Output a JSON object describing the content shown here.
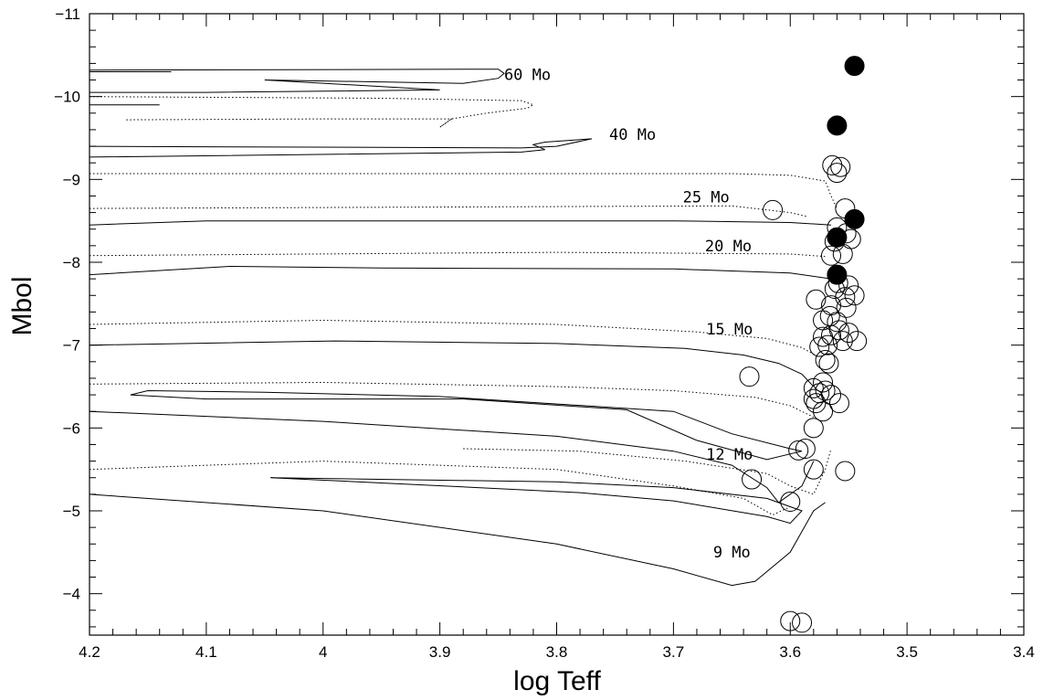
{
  "chart_data": {
    "type": "scatter",
    "title": "",
    "xlabel": "log Teff",
    "ylabel": "Mbol",
    "xlim": [
      4.2,
      3.4
    ],
    "ylim": [
      -3.5,
      -11
    ],
    "x_major_ticks": [
      4.2,
      4.1,
      4.0,
      3.9,
      3.8,
      3.7,
      3.6,
      3.5,
      3.4
    ],
    "x_tick_labels": [
      "4.2",
      "4.1",
      "4",
      "3.9",
      "3.8",
      "3.7",
      "3.6",
      "3.5",
      "3.4"
    ],
    "y_major_ticks": [
      -4,
      -5,
      -6,
      -7,
      -8,
      -9,
      -10,
      -11
    ],
    "y_tick_labels": [
      "−4",
      "−5",
      "−6",
      "−7",
      "−8",
      "−9",
      "−10",
      "−11"
    ],
    "grid": false,
    "tracks": [
      {
        "label": "60 Mo",
        "label_pos": [
          3.825,
          -10.2
        ],
        "segments": [
          {
            "style": "solid",
            "points": [
              [
                4.2,
                -10.32
              ],
              [
                3.85,
                -10.33
              ],
              [
                3.845,
                -10.28
              ],
              [
                3.85,
                -10.22
              ],
              [
                3.88,
                -10.16
              ],
              [
                4.05,
                -10.2
              ],
              [
                3.9,
                -10.08
              ],
              [
                4.1,
                -10.05
              ],
              [
                4.2,
                -10.05
              ]
            ]
          },
          {
            "style": "solid",
            "points": [
              [
                4.2,
                -10.3
              ],
              [
                4.13,
                -10.3
              ]
            ]
          },
          {
            "style": "solid",
            "points": [
              [
                4.2,
                -9.9
              ],
              [
                4.14,
                -9.9
              ]
            ]
          },
          {
            "style": "dotted",
            "points": [
              [
                4.2,
                -10.0
              ],
              [
                3.95,
                -9.98
              ],
              [
                3.83,
                -9.95
              ],
              [
                3.82,
                -9.9
              ],
              [
                3.825,
                -9.86
              ],
              [
                3.86,
                -9.8
              ],
              [
                3.89,
                -9.73
              ],
              [
                3.9,
                -9.63
              ],
              [
                3.89,
                -9.73
              ],
              [
                4.0,
                -9.73
              ],
              [
                4.17,
                -9.72
              ]
            ]
          }
        ]
      },
      {
        "label": "40 Mo",
        "label_pos": [
          3.735,
          -9.48
        ],
        "segments": [
          {
            "style": "solid",
            "points": [
              [
                4.2,
                -9.4
              ],
              [
                3.83,
                -9.38
              ],
              [
                3.8,
                -9.4
              ],
              [
                3.77,
                -9.49
              ],
              [
                3.81,
                -9.45
              ],
              [
                3.82,
                -9.42
              ],
              [
                3.81,
                -9.36
              ],
              [
                3.83,
                -9.33
              ],
              [
                4.2,
                -9.27
              ]
            ]
          }
        ]
      },
      {
        "label": "25 Mo",
        "label_pos": [
          3.672,
          -8.72
        ],
        "segments": [
          {
            "style": "dotted",
            "points": [
              [
                4.2,
                -9.07
              ],
              [
                3.65,
                -9.07
              ],
              [
                3.6,
                -9.05
              ],
              [
                3.57,
                -8.98
              ],
              [
                3.565,
                -8.8
              ],
              [
                3.56,
                -8.65
              ]
            ]
          },
          {
            "style": "dotted",
            "points": [
              [
                4.2,
                -8.65
              ],
              [
                3.65,
                -8.68
              ],
              [
                3.6,
                -8.6
              ],
              [
                3.585,
                -8.55
              ]
            ]
          }
        ]
      },
      {
        "label": "20 Mo",
        "label_pos": [
          3.653,
          -8.13
        ],
        "segments": [
          {
            "style": "solid",
            "points": [
              [
                4.2,
                -8.45
              ],
              [
                4.1,
                -8.5
              ],
              [
                4.0,
                -8.5
              ],
              [
                3.7,
                -8.5
              ],
              [
                3.6,
                -8.48
              ],
              [
                3.565,
                -8.45
              ]
            ]
          },
          {
            "style": "dotted",
            "points": [
              [
                4.2,
                -8.08
              ],
              [
                3.8,
                -8.12
              ],
              [
                3.6,
                -8.1
              ],
              [
                3.57,
                -8.07
              ]
            ]
          }
        ]
      },
      {
        "label": "15 Mo",
        "label_pos": [
          3.652,
          -7.13
        ],
        "segments": [
          {
            "style": "solid",
            "points": [
              [
                4.2,
                -7.85
              ],
              [
                4.08,
                -7.95
              ],
              [
                3.95,
                -7.93
              ],
              [
                3.7,
                -7.92
              ],
              [
                3.6,
                -7.87
              ],
              [
                3.565,
                -7.8
              ]
            ]
          },
          {
            "style": "dotted",
            "points": [
              [
                4.2,
                -7.25
              ],
              [
                4.0,
                -7.3
              ],
              [
                3.8,
                -7.25
              ],
              [
                3.68,
                -7.16
              ],
              [
                3.62,
                -7.08
              ],
              [
                3.59,
                -6.97
              ],
              [
                3.575,
                -6.85
              ]
            ]
          }
        ]
      },
      {
        "label": "12 Mo",
        "label_pos": [
          3.652,
          -5.62
        ],
        "segments": [
          {
            "style": "solid",
            "points": [
              [
                4.2,
                -7.0
              ],
              [
                3.99,
                -7.05
              ],
              [
                3.8,
                -7.02
              ],
              [
                3.69,
                -6.96
              ],
              [
                3.64,
                -6.88
              ],
              [
                3.61,
                -6.78
              ],
              [
                3.59,
                -6.65
              ],
              [
                3.58,
                -6.5
              ]
            ]
          },
          {
            "style": "dotted",
            "points": [
              [
                4.2,
                -6.53
              ],
              [
                4.0,
                -6.55
              ],
              [
                3.8,
                -6.5
              ],
              [
                3.7,
                -6.45
              ],
              [
                3.63,
                -6.37
              ],
              [
                3.6,
                -6.27
              ],
              [
                3.58,
                -6.13
              ]
            ]
          },
          {
            "style": "solid",
            "points": [
              [
                4.165,
                -6.4
              ],
              [
                4.15,
                -6.45
              ],
              [
                4.05,
                -6.43
              ],
              [
                3.9,
                -6.38
              ],
              [
                3.7,
                -6.2
              ],
              [
                3.65,
                -5.93
              ],
              [
                3.6,
                -5.75
              ],
              [
                3.59,
                -5.72
              ],
              [
                3.62,
                -5.62
              ],
              [
                3.68,
                -5.85
              ],
              [
                3.74,
                -6.22
              ],
              [
                3.88,
                -6.35
              ],
              [
                4.1,
                -6.35
              ],
              [
                4.165,
                -6.4
              ]
            ]
          },
          {
            "style": "dotted",
            "points": [
              [
                3.88,
                -5.75
              ],
              [
                3.78,
                -5.72
              ],
              [
                3.69,
                -5.6
              ],
              [
                3.62,
                -5.45
              ],
              [
                3.6,
                -5.3
              ],
              [
                3.58,
                -5.2
              ],
              [
                3.57,
                -5.5
              ],
              [
                3.565,
                -5.75
              ]
            ]
          },
          {
            "style": "solid",
            "points": [
              [
                4.2,
                -6.2
              ],
              [
                4.0,
                -6.08
              ],
              [
                3.8,
                -5.9
              ],
              [
                3.7,
                -5.72
              ],
              [
                3.65,
                -5.55
              ],
              [
                3.62,
                -5.28
              ],
              [
                3.61,
                -5.1
              ],
              [
                3.59,
                -5.3
              ],
              [
                3.58,
                -5.6
              ]
            ]
          },
          {
            "style": "dotted",
            "points": [
              [
                4.2,
                -5.5
              ],
              [
                4.0,
                -5.6
              ],
              [
                3.8,
                -5.5
              ],
              [
                3.7,
                -5.3
              ],
              [
                3.64,
                -5.15
              ],
              [
                3.615,
                -4.95
              ],
              [
                3.6,
                -5.05
              ]
            ]
          },
          {
            "style": "solid",
            "points": [
              [
                4.045,
                -5.4
              ],
              [
                3.94,
                -5.33
              ],
              [
                3.78,
                -5.22
              ],
              [
                3.7,
                -5.12
              ],
              [
                3.62,
                -4.93
              ],
              [
                3.6,
                -4.85
              ],
              [
                3.59,
                -5.0
              ],
              [
                3.6,
                -5.05
              ],
              [
                3.62,
                -5.15
              ],
              [
                3.7,
                -5.28
              ],
              [
                3.8,
                -5.35
              ],
              [
                4.045,
                -5.4
              ]
            ]
          }
        ]
      },
      {
        "label": "9 Mo",
        "label_pos": [
          3.65,
          -4.44
        ],
        "segments": [
          {
            "style": "solid",
            "points": [
              [
                4.2,
                -5.2
              ],
              [
                4.0,
                -5.0
              ],
              [
                3.8,
                -4.6
              ],
              [
                3.7,
                -4.3
              ],
              [
                3.65,
                -4.1
              ],
              [
                3.63,
                -4.15
              ],
              [
                3.6,
                -4.5
              ],
              [
                3.58,
                -5.0
              ],
              [
                3.57,
                -5.1
              ]
            ]
          }
        ]
      }
    ],
    "series": [
      {
        "marker": "open-circle",
        "points": [
          [
            3.557,
            -9.15
          ],
          [
            3.564,
            -9.17
          ],
          [
            3.56,
            -9.08
          ],
          [
            3.553,
            -8.65
          ],
          [
            3.615,
            -8.63
          ],
          [
            3.56,
            -8.42
          ],
          [
            3.552,
            -8.35
          ],
          [
            3.548,
            -8.28
          ],
          [
            3.562,
            -8.25
          ],
          [
            3.555,
            -8.1
          ],
          [
            3.565,
            -8.08
          ],
          [
            3.559,
            -7.75
          ],
          [
            3.55,
            -7.72
          ],
          [
            3.562,
            -7.68
          ],
          [
            3.545,
            -7.6
          ],
          [
            3.553,
            -7.58
          ],
          [
            3.578,
            -7.55
          ],
          [
            3.565,
            -7.48
          ],
          [
            3.552,
            -7.45
          ],
          [
            3.566,
            -7.35
          ],
          [
            3.56,
            -7.28
          ],
          [
            3.572,
            -7.3
          ],
          [
            3.558,
            -7.18
          ],
          [
            3.55,
            -7.15
          ],
          [
            3.565,
            -7.12
          ],
          [
            3.555,
            -7.05
          ],
          [
            3.543,
            -7.05
          ],
          [
            3.572,
            -7.1
          ],
          [
            3.568,
            -7.0
          ],
          [
            3.575,
            -6.98
          ],
          [
            3.57,
            -6.82
          ],
          [
            3.567,
            -6.78
          ],
          [
            3.635,
            -6.62
          ],
          [
            3.572,
            -6.55
          ],
          [
            3.58,
            -6.48
          ],
          [
            3.57,
            -6.45
          ],
          [
            3.575,
            -6.42
          ],
          [
            3.565,
            -6.4
          ],
          [
            3.58,
            -6.35
          ],
          [
            3.578,
            -6.3
          ],
          [
            3.558,
            -6.3
          ],
          [
            3.572,
            -6.2
          ],
          [
            3.58,
            -6.0
          ],
          [
            3.587,
            -5.75
          ],
          [
            3.593,
            -5.73
          ],
          [
            3.58,
            -5.5
          ],
          [
            3.553,
            -5.48
          ],
          [
            3.633,
            -5.38
          ],
          [
            3.6,
            -5.11
          ],
          [
            3.6,
            -3.67
          ],
          [
            3.59,
            -3.65
          ]
        ]
      },
      {
        "marker": "filled-circle",
        "points": [
          [
            3.545,
            -10.37
          ],
          [
            3.56,
            -9.65
          ],
          [
            3.545,
            -8.52
          ],
          [
            3.56,
            -8.3
          ],
          [
            3.56,
            -7.85
          ]
        ]
      }
    ]
  }
}
